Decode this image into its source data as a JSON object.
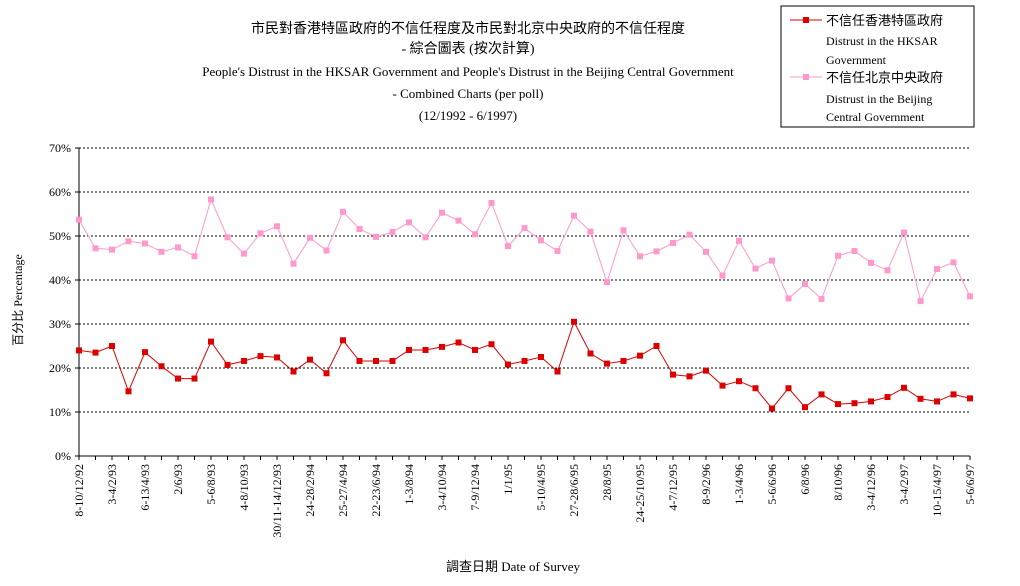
{
  "chart_data": {
    "type": "line",
    "title_lines": [
      "市民對香港特區政府的不信任程度及市民對北京中央政府的不信任程度",
      "- 綜合圖表 (按次計算)",
      "People's Distrust in the HKSAR Government and People's Distrust in the Beijing Central Government",
      "- Combined Charts (per poll)",
      "(12/1992 - 6/1997)"
    ],
    "ylabel": "百分比 Percentage",
    "xlabel": "調查日期 Date of Survey",
    "ylim": [
      0,
      70
    ],
    "y_ticks": [
      "0%",
      "10%",
      "20%",
      "30%",
      "40%",
      "50%",
      "60%",
      "70%"
    ],
    "grid": "horizontal dashed",
    "legend_position": "top-right",
    "x_tick_labels": [
      "8-10/12/92",
      "3-4/2/93",
      "6-13/4/93",
      "2/6/93",
      "5-6/8/93",
      "4-8/10/93",
      "30/11-14/12/93",
      "24-28/2/94",
      "25-27/4/94",
      "22-23/6/94",
      "1-3/8/94",
      "3-4/10/94",
      "7-9/12/94",
      "1/1/95",
      "5-10/4/95",
      "27-28/6/95",
      "28/8/95",
      "24-25/10/95",
      "4-7/12/95",
      "8-9/2/96",
      "1-3/4/96",
      "5-6/6/96",
      "6/8/96",
      "8/10/96",
      "3-4/12/96",
      "3-4/2/97",
      "10-15/4/97",
      "5-6/6/97"
    ],
    "series": [
      {
        "name_lines": [
          "不信任香港特區政府",
          "Distrust in the HKSAR",
          "Government"
        ],
        "color": "#dd0000",
        "values": [
          24,
          23.5,
          25,
          14.7,
          23.6,
          20.4,
          17.6,
          17.6,
          26,
          20.7,
          21.6,
          22.7,
          22.4,
          19.2,
          21.9,
          18.8,
          26.3,
          21.6,
          21.6,
          21.6,
          24.1,
          24.1,
          24.8,
          25.8,
          24.1,
          25.4,
          20.8,
          21.6,
          22.5,
          19.2,
          30.5,
          23.3,
          21,
          21.6,
          22.8,
          25,
          18.5,
          18.1,
          19.4,
          16,
          17,
          15.4,
          10.8,
          15.4,
          11.1,
          14,
          11.8,
          12,
          12.4,
          13.4,
          15.5,
          13,
          12.4,
          14,
          13.1
        ]
      },
      {
        "name_lines": [
          "不信任北京中央政府",
          "Distrust in the Beijing",
          "Central Government"
        ],
        "color": "#ff99cc",
        "values": [
          53.7,
          47.2,
          46.9,
          48.8,
          48.3,
          46.4,
          47.4,
          45.4,
          58.3,
          49.7,
          46,
          50.6,
          52.2,
          43.7,
          49.6,
          46.7,
          55.5,
          51.6,
          49.8,
          50.9,
          53.1,
          49.7,
          55.3,
          53.5,
          50.4,
          57.5,
          47.7,
          51.8,
          49,
          46.6,
          54.6,
          51,
          39.5,
          51.3,
          45.4,
          46.5,
          48.4,
          50.3,
          46.4,
          41,
          48.9,
          42.6,
          44.4,
          35.8,
          39.1,
          35.7,
          45.5,
          46.6,
          43.9,
          42.2,
          50.8,
          35.2,
          42.5,
          44,
          36.3
        ]
      }
    ]
  }
}
